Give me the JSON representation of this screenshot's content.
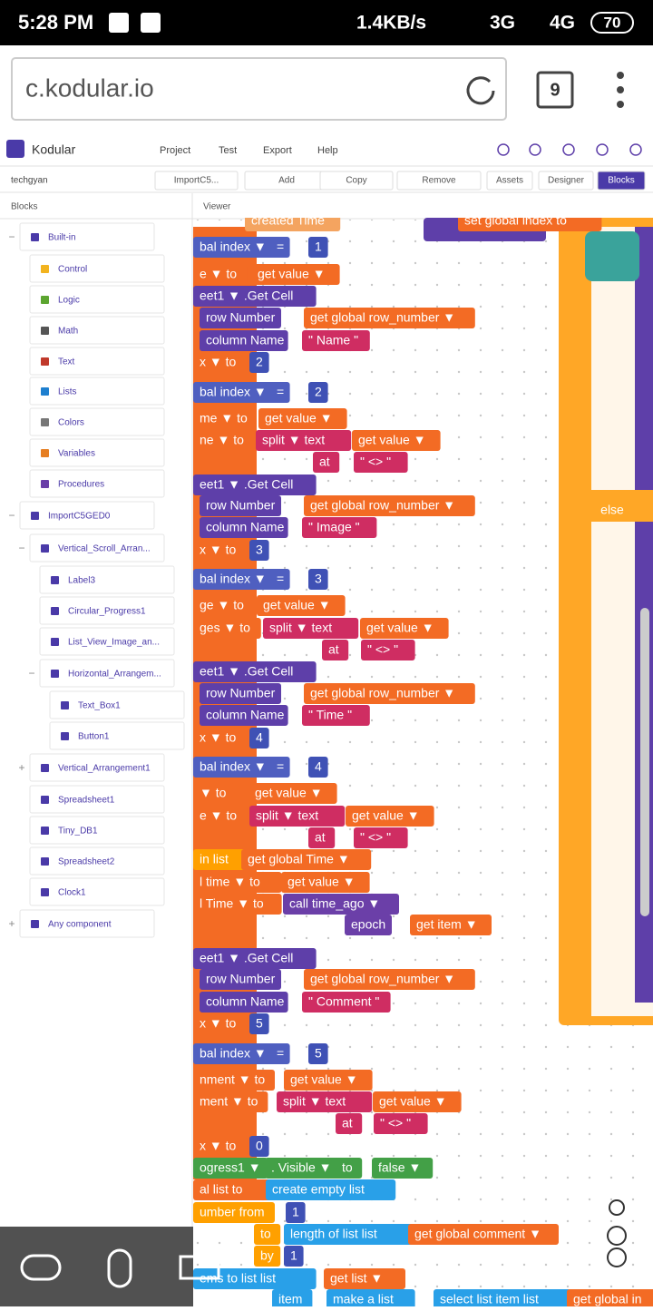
{
  "status": {
    "time": "5:28 PM",
    "speed": "1.4KB/s",
    "net1": "3G",
    "net2": "4G",
    "battery": "70"
  },
  "browser": {
    "url": "c.kodular.io",
    "tabs": "9"
  },
  "header": {
    "brand": "Kodular",
    "menu": [
      "Project",
      "Test",
      "Export",
      "Help"
    ]
  },
  "toolbar": {
    "project": "techgyan",
    "screen": "ImportC5...",
    "buttons": [
      "Add",
      "Copy",
      "Remove"
    ],
    "tabs": [
      "Assets",
      "Designer",
      "Blocks"
    ]
  },
  "panels": {
    "left": "Blocks",
    "right": "Viewer"
  },
  "tree": [
    "Built-in",
    "Control",
    "Logic",
    "Math",
    "Text",
    "Lists",
    "Colors",
    "Variables",
    "Procedures",
    "ImportC5GED0",
    "Vertical_Scroll_Arran...",
    "Label3",
    "Circular_Progress1",
    "List_View_Image_an...",
    "Horizontal_Arrangem...",
    "Text_Box1",
    "Button1",
    "Vertical_Arrangement1",
    "Spreadsheet1",
    "Tiny_DB1",
    "Spreadsheet2",
    "Clock1",
    "Any component"
  ],
  "blocks": {
    "else": "else",
    "rows": [
      [
        "created Time",
        "set global index to"
      ],
      [
        "bal index ▼",
        "=",
        "1"
      ],
      [
        "e ▼ to",
        "get value ▼"
      ],
      [
        "eet1 ▼ .Get Cell"
      ],
      [
        "row Number",
        "get global row_number ▼"
      ],
      [
        "column Name",
        "\" Name \""
      ],
      [
        "x ▼ to",
        "2"
      ],
      [
        "bal index ▼",
        "=",
        "2"
      ],
      [
        "me ▼ to",
        "get value ▼"
      ],
      [
        "ne ▼ to",
        "split ▼ text",
        "get value ▼"
      ],
      [
        "at",
        "\" <> \""
      ],
      [
        "eet1 ▼ .Get Cell"
      ],
      [
        "row Number",
        "get global row_number ▼"
      ],
      [
        "column Name",
        "\" Image \""
      ],
      [
        "x ▼ to",
        "3"
      ],
      [
        "bal index ▼",
        "=",
        "3"
      ],
      [
        "ge ▼ to",
        "get value ▼"
      ],
      [
        "ges ▼ to",
        "split ▼ text",
        "get value ▼"
      ],
      [
        "at",
        "\" <> \""
      ],
      [
        "eet1 ▼ .Get Cell"
      ],
      [
        "row Number",
        "get global row_number ▼"
      ],
      [
        "column Name",
        "\" Time \""
      ],
      [
        "x ▼ to",
        "4"
      ],
      [
        "bal index ▼",
        "=",
        "4"
      ],
      [
        "▼ to",
        "get value ▼"
      ],
      [
        "e ▼ to",
        "split ▼ text",
        "get value ▼"
      ],
      [
        "at",
        "\" <> \""
      ],
      [
        "in list",
        "get global Time ▼"
      ],
      [
        "l time ▼ to",
        "get value ▼"
      ],
      [
        "l Time ▼ to",
        "call time_ago ▼"
      ],
      [
        "epoch",
        "get item ▼"
      ],
      [
        "eet1 ▼ .Get Cell"
      ],
      [
        "row Number",
        "get global row_number ▼"
      ],
      [
        "column Name",
        "\" Comment \""
      ],
      [
        "x ▼ to",
        "5"
      ],
      [
        "bal index ▼",
        "=",
        "5"
      ],
      [
        "nment ▼ to",
        "get value ▼"
      ],
      [
        "ment ▼ to",
        "split ▼ text",
        "get value ▼"
      ],
      [
        "at",
        "\" <> \""
      ],
      [
        "x ▼ to",
        "0"
      ],
      [
        "ogress1 ▼",
        ". Visible ▼",
        "to",
        "false ▼"
      ],
      [
        "al list to",
        "create empty list"
      ],
      [
        "umber from",
        "1"
      ],
      [
        "to",
        "length of list list",
        "get global comment ▼"
      ],
      [
        "by",
        "1"
      ],
      [
        "ems to list list",
        "get list ▼"
      ],
      [
        "item",
        "make a list",
        "select list item list",
        "get global in"
      ]
    ]
  }
}
